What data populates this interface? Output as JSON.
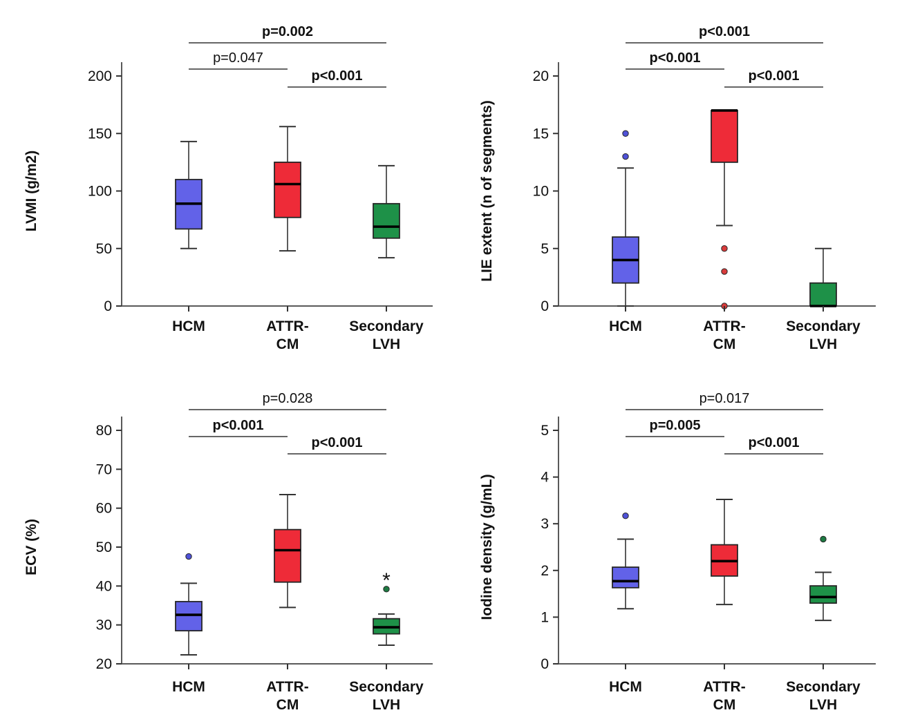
{
  "page": {
    "background": "#ffffff"
  },
  "palette": {
    "blue": "#6262E8",
    "red": "#EE2B38",
    "green": "#1E9148",
    "blue_outlier": "#4F52D8",
    "red_outlier": "#D93B3B",
    "green_outlier": "#1E7A42",
    "green_star": "#7ECB9C",
    "box_border": "#262626",
    "median_line": "#000000",
    "whisker": "#333333",
    "axis": "#595959",
    "bracket": "#333333",
    "text": "#111111"
  },
  "chart_data": [
    {
      "type": "box",
      "title": "",
      "ylabel": "LVMI (g/m2)",
      "xlabel": "",
      "ylim": [
        0,
        200
      ],
      "yticks": [
        0,
        50,
        100,
        150,
        200
      ],
      "grid": false,
      "categories": [
        [
          "HCM"
        ],
        [
          "ATTR-",
          "CM"
        ],
        [
          "Secondary",
          "LVH"
        ]
      ],
      "series": [
        {
          "name": "HCM",
          "color": "blue",
          "whisker_low": 50,
          "q1": 67,
          "median": 89,
          "q3": 110,
          "whisker_high": 143,
          "outliers": []
        },
        {
          "name": "ATTR-CM",
          "color": "red",
          "whisker_low": 48,
          "q1": 77,
          "median": 106,
          "q3": 125,
          "whisker_high": 156,
          "outliers": []
        },
        {
          "name": "Secondary LVH",
          "color": "green",
          "whisker_low": 42,
          "q1": 59,
          "median": 69,
          "q3": 89,
          "whisker_high": 122,
          "outliers": []
        }
      ],
      "comparisons": [
        {
          "a": 0,
          "b": 2,
          "label": "p=0.002",
          "bold": true,
          "position": "top"
        },
        {
          "a": 0,
          "b": 1,
          "label": "p=0.047",
          "bold": false,
          "position": "mid"
        },
        {
          "a": 1,
          "b": 2,
          "label": "p<0.001",
          "bold": true,
          "position": "low"
        }
      ]
    },
    {
      "type": "box",
      "title": "",
      "ylabel": "LIE extent (n of segments)",
      "xlabel": "",
      "ylim": [
        0,
        20
      ],
      "yticks": [
        0,
        5,
        10,
        15,
        20
      ],
      "grid": false,
      "categories": [
        [
          "HCM"
        ],
        [
          "ATTR-",
          "CM"
        ],
        [
          "Secondary",
          "LVH"
        ]
      ],
      "series": [
        {
          "name": "HCM",
          "color": "blue",
          "whisker_low": 0,
          "q1": 2,
          "median": 4,
          "q3": 6,
          "whisker_high": 12,
          "outliers": [
            {
              "value": 13,
              "marker": "dot"
            },
            {
              "value": 15,
              "marker": "dot"
            }
          ]
        },
        {
          "name": "ATTR-CM",
          "color": "red",
          "whisker_low": 7,
          "q1": 12.5,
          "median": 17,
          "q3": 17,
          "whisker_high": 17,
          "outliers": [
            {
              "value": 5,
              "marker": "dot"
            },
            {
              "value": 3,
              "marker": "dot"
            },
            {
              "value": 0,
              "marker": "dot"
            }
          ]
        },
        {
          "name": "Secondary LVH",
          "color": "green",
          "whisker_low": 0,
          "q1": 0,
          "median": 0,
          "q3": 2,
          "whisker_high": 5,
          "outliers": []
        }
      ],
      "comparisons": [
        {
          "a": 0,
          "b": 2,
          "label": "p<0.001",
          "bold": true,
          "position": "top"
        },
        {
          "a": 0,
          "b": 1,
          "label": "p<0.001",
          "bold": true,
          "position": "mid"
        },
        {
          "a": 1,
          "b": 2,
          "label": "p<0.001",
          "bold": true,
          "position": "low"
        }
      ]
    },
    {
      "type": "box",
      "title": "",
      "ylabel": "ECV (%)",
      "xlabel": "",
      "ylim": [
        20,
        80
      ],
      "yticks": [
        20,
        30,
        40,
        50,
        60,
        70,
        80
      ],
      "grid": false,
      "categories": [
        [
          "HCM"
        ],
        [
          "ATTR-",
          "CM"
        ],
        [
          "Secondary",
          "LVH"
        ]
      ],
      "series": [
        {
          "name": "HCM",
          "color": "blue",
          "whisker_low": 22.3,
          "q1": 28.5,
          "median": 32.6,
          "q3": 36,
          "whisker_high": 40.7,
          "outliers": [
            {
              "value": 47.6,
              "marker": "dot"
            }
          ]
        },
        {
          "name": "ATTR-CM",
          "color": "red",
          "whisker_low": 34.5,
          "q1": 41,
          "median": 49.2,
          "q3": 54.5,
          "whisker_high": 63.5,
          "outliers": []
        },
        {
          "name": "Secondary LVH",
          "color": "green",
          "whisker_low": 24.8,
          "q1": 27.7,
          "median": 29.4,
          "q3": 31.6,
          "whisker_high": 32.8,
          "outliers": [
            {
              "value": 39.2,
              "marker": "dot"
            },
            {
              "value": 41.8,
              "marker": "star"
            }
          ]
        }
      ],
      "comparisons": [
        {
          "a": 0,
          "b": 2,
          "label": "p=0.028",
          "bold": false,
          "position": "top"
        },
        {
          "a": 0,
          "b": 1,
          "label": "p<0.001",
          "bold": true,
          "position": "mid"
        },
        {
          "a": 1,
          "b": 2,
          "label": "p<0.001",
          "bold": true,
          "position": "low"
        }
      ]
    },
    {
      "type": "box",
      "title": "",
      "ylabel": "Iodine density (g/mL)",
      "xlabel": "",
      "ylim": [
        0,
        5
      ],
      "yticks": [
        0,
        1,
        2,
        3,
        4,
        5
      ],
      "grid": false,
      "categories": [
        [
          "HCM"
        ],
        [
          "ATTR-",
          "CM"
        ],
        [
          "Secondary",
          "LVH"
        ]
      ],
      "series": [
        {
          "name": "HCM",
          "color": "blue",
          "whisker_low": 1.18,
          "q1": 1.63,
          "median": 1.77,
          "q3": 2.07,
          "whisker_high": 2.67,
          "outliers": [
            {
              "value": 3.17,
              "marker": "dot"
            }
          ]
        },
        {
          "name": "ATTR-CM",
          "color": "red",
          "whisker_low": 1.27,
          "q1": 1.88,
          "median": 2.2,
          "q3": 2.55,
          "whisker_high": 3.52,
          "outliers": []
        },
        {
          "name": "Secondary LVH",
          "color": "green",
          "whisker_low": 0.93,
          "q1": 1.3,
          "median": 1.43,
          "q3": 1.67,
          "whisker_high": 1.96,
          "outliers": [
            {
              "value": 2.67,
              "marker": "dot"
            }
          ]
        }
      ],
      "comparisons": [
        {
          "a": 0,
          "b": 2,
          "label": "p=0.017",
          "bold": false,
          "position": "top"
        },
        {
          "a": 0,
          "b": 1,
          "label": "p=0.005",
          "bold": true,
          "position": "mid"
        },
        {
          "a": 1,
          "b": 2,
          "label": "p<0.001",
          "bold": true,
          "position": "low"
        }
      ]
    }
  ]
}
